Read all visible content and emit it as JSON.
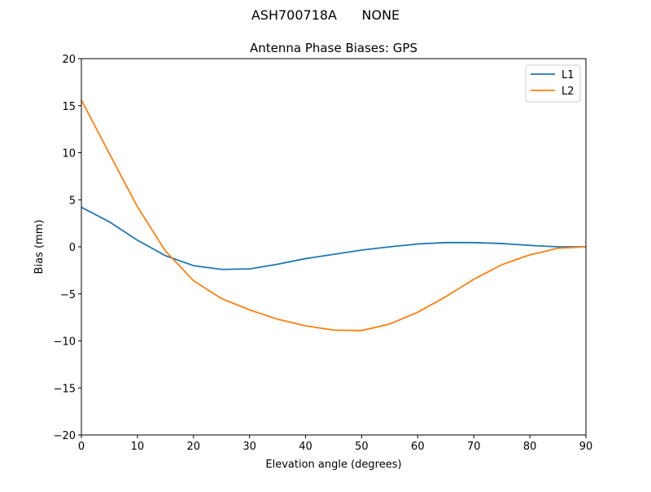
{
  "chart_data": {
    "type": "line",
    "suptitle": "ASH700718A      NONE",
    "title": "Antenna Phase Biases: GPS",
    "xlabel": "Elevation angle (degrees)",
    "ylabel": "Bias (mm)",
    "xlim": [
      0,
      90
    ],
    "ylim": [
      -20,
      20
    ],
    "xticks": [
      0,
      10,
      20,
      30,
      40,
      50,
      60,
      70,
      80,
      90
    ],
    "yticks": [
      -20,
      -15,
      -10,
      -5,
      0,
      5,
      10,
      15,
      20
    ],
    "ytick_labels": [
      "−20",
      "−15",
      "−10",
      "−5",
      "0",
      "5",
      "10",
      "15",
      "20"
    ],
    "grid": false,
    "legend_position": "top-right",
    "x": [
      0,
      5,
      10,
      15,
      20,
      25,
      30,
      35,
      40,
      45,
      50,
      55,
      60,
      65,
      70,
      75,
      80,
      85,
      90
    ],
    "series": [
      {
        "name": "L1",
        "color": "#1f77b4",
        "values": [
          4.2,
          2.65,
          0.7,
          -0.95,
          -2.0,
          -2.4,
          -2.35,
          -1.85,
          -1.25,
          -0.8,
          -0.35,
          0.0,
          0.3,
          0.45,
          0.45,
          0.35,
          0.15,
          0.0,
          0.0
        ]
      },
      {
        "name": "L2",
        "color": "#ff7f0e",
        "values": [
          15.6,
          9.9,
          4.25,
          -0.45,
          -3.6,
          -5.5,
          -6.7,
          -7.7,
          -8.4,
          -8.85,
          -8.9,
          -8.2,
          -6.95,
          -5.3,
          -3.45,
          -1.9,
          -0.85,
          -0.15,
          0.0
        ]
      }
    ]
  }
}
